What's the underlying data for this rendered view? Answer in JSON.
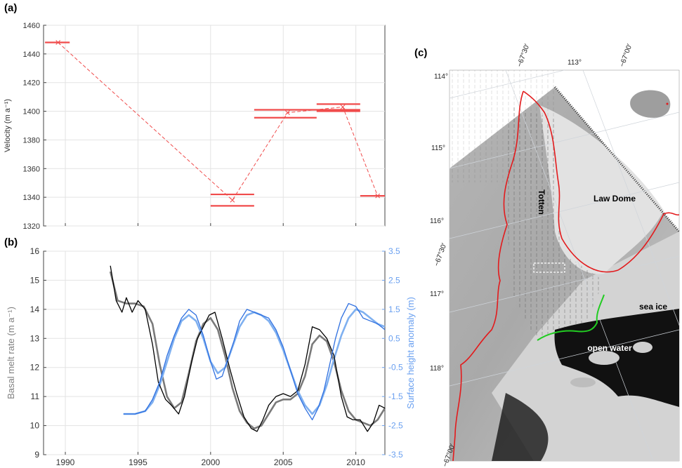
{
  "panels": {
    "a": "(a)",
    "b": "(b)",
    "c": "(c)"
  },
  "chart_data": [
    {
      "type": "line",
      "panel": "(a)",
      "ylabel": "Velocity (m a⁻¹)",
      "xlim": [
        1988.5,
        2012
      ],
      "ylim": [
        1320,
        1460
      ],
      "yticks": [
        1320,
        1340,
        1360,
        1380,
        1400,
        1420,
        1440,
        1460
      ],
      "grid": true,
      "series": [
        {
          "values_x": [
            1989.5,
            2001.5,
            2005.3,
            2009.1,
            2011.5
          ],
          "values_y": [
            1448,
            1338,
            1399,
            1403,
            1341
          ],
          "color": "#f04b4b",
          "style": "dashed"
        }
      ],
      "intervals": [
        {
          "x0": 1988.6,
          "x1": 1990.3,
          "y": 1448
        },
        {
          "x0": 2000.0,
          "x1": 2003.0,
          "y": 1342
        },
        {
          "x0": 2000.0,
          "x1": 2003.0,
          "y": 1334
        },
        {
          "x0": 2003.0,
          "x1": 2010.3,
          "y": 1401
        },
        {
          "x0": 2003.0,
          "x1": 2007.3,
          "y": 1395.5
        },
        {
          "x0": 2007.3,
          "x1": 2010.3,
          "y": 1405
        },
        {
          "x0": 2007.3,
          "x1": 2010.3,
          "y": 1400
        },
        {
          "x0": 2010.3,
          "x1": 2012.0,
          "y": 1341
        }
      ]
    },
    {
      "type": "line",
      "panel": "(b)",
      "xlim": [
        1988.5,
        2012
      ],
      "xticks": [
        1990,
        1995,
        2000,
        2005,
        2010
      ],
      "ylabel_left": "Basal melt rate (m a⁻¹)",
      "ylim_left": [
        9,
        16
      ],
      "yticks_left": [
        9,
        10,
        11,
        12,
        13,
        14,
        15,
        16
      ],
      "ylabel_right": "Surface height anomaly (m)",
      "ylim_right": [
        -3.5,
        3.5
      ],
      "yticks_right": [
        "-3.5",
        "-2.5",
        "-1.5",
        "-0.5",
        "0.5",
        "1.5",
        "2.5",
        "3.5"
      ],
      "grid": true,
      "series": [
        {
          "axis": "left",
          "color": "#000000",
          "width": 1.3,
          "x": [
            1993.1,
            1993.5,
            1993.9,
            1994.2,
            1994.6,
            1995.0,
            1995.5,
            1996.0,
            1996.4,
            1996.9,
            1997.3,
            1997.8,
            1998.2,
            1998.7,
            1999.1,
            1999.5,
            1999.9,
            2000.3,
            2000.8,
            2001.3,
            2001.8,
            2002.3,
            2002.8,
            2003.2,
            2003.6,
            2004.0,
            2004.5,
            2005.0,
            2005.5,
            2006.0,
            2006.5,
            2007.0,
            2007.5,
            2008.0,
            2008.5,
            2009.0,
            2009.4,
            2009.8,
            2010.3,
            2010.8,
            2011.2,
            2011.6,
            2012.0
          ],
          "y": [
            15.5,
            14.3,
            13.9,
            14.4,
            13.9,
            14.3,
            14.0,
            12.8,
            11.5,
            10.9,
            10.7,
            10.4,
            11.0,
            12.2,
            13.0,
            13.4,
            13.8,
            13.9,
            13.0,
            12.0,
            11.1,
            10.3,
            9.9,
            9.8,
            10.2,
            10.7,
            11.0,
            11.1,
            11.0,
            11.2,
            12.1,
            13.4,
            13.3,
            13.0,
            12.4,
            11.0,
            10.3,
            10.2,
            10.2,
            9.8,
            10.1,
            10.7,
            10.6
          ]
        },
        {
          "axis": "left",
          "color": "#7a7a7a",
          "width": 2.6,
          "x": [
            1993.1,
            1993.6,
            1994.2,
            1994.8,
            1995.4,
            1996.0,
            1996.5,
            1997.0,
            1997.5,
            1998.0,
            1998.5,
            1999.0,
            1999.5,
            2000.0,
            2000.5,
            2001.0,
            2001.5,
            2002.0,
            2002.5,
            2003.0,
            2003.5,
            2004.0,
            2004.5,
            2005.0,
            2005.5,
            2006.0,
            2006.5,
            2007.0,
            2007.5,
            2008.0,
            2008.5,
            2009.0,
            2009.5,
            2010.0,
            2010.5,
            2011.0,
            2011.5,
            2012.0
          ],
          "y": [
            15.3,
            14.3,
            14.2,
            14.2,
            14.1,
            13.5,
            12.1,
            11.0,
            10.6,
            10.8,
            11.8,
            12.9,
            13.5,
            13.7,
            13.3,
            12.4,
            11.3,
            10.5,
            10.1,
            9.9,
            10.0,
            10.4,
            10.8,
            10.9,
            10.9,
            11.1,
            11.7,
            12.8,
            13.1,
            12.9,
            12.2,
            11.2,
            10.5,
            10.2,
            10.1,
            10.0,
            10.2,
            10.6
          ]
        },
        {
          "axis": "right",
          "color": "#2e6fe0",
          "width": 1.3,
          "x": [
            1994.0,
            1994.8,
            1995.5,
            1996.0,
            1996.5,
            1997.0,
            1997.5,
            1998.0,
            1998.5,
            1999.0,
            1999.5,
            2000.0,
            2000.4,
            2000.8,
            2001.2,
            2001.6,
            2002.0,
            2002.5,
            2003.0,
            2003.5,
            2004.0,
            2004.5,
            2005.0,
            2005.5,
            2006.0,
            2006.5,
            2007.0,
            2007.4,
            2007.8,
            2008.2,
            2008.6,
            2009.0,
            2009.5,
            2010.0,
            2010.5,
            2011.0,
            2011.5,
            2012.0
          ],
          "y": [
            -2.1,
            -2.1,
            -2.0,
            -1.6,
            -1.0,
            -0.1,
            0.6,
            1.2,
            1.5,
            1.3,
            0.6,
            -0.3,
            -0.9,
            -0.8,
            -0.2,
            0.4,
            1.1,
            1.5,
            1.4,
            1.3,
            1.2,
            0.8,
            0.2,
            -0.6,
            -1.4,
            -1.9,
            -2.3,
            -1.9,
            -1.3,
            -0.4,
            0.5,
            1.2,
            1.7,
            1.6,
            1.2,
            1.1,
            1.0,
            0.8
          ]
        },
        {
          "axis": "right",
          "color": "#7fb0f0",
          "width": 2.6,
          "x": [
            1994.0,
            1994.8,
            1995.5,
            1996.0,
            1996.5,
            1997.0,
            1997.5,
            1998.0,
            1998.5,
            1999.0,
            1999.5,
            2000.0,
            2000.5,
            2001.0,
            2001.5,
            2002.0,
            2002.5,
            2003.0,
            2003.5,
            2004.0,
            2004.5,
            2005.0,
            2005.5,
            2006.0,
            2006.5,
            2007.0,
            2007.5,
            2008.0,
            2008.5,
            2009.0,
            2009.5,
            2010.0,
            2010.5,
            2011.0,
            2011.5,
            2012.0
          ],
          "y": [
            -2.1,
            -2.1,
            -2.0,
            -1.7,
            -1.1,
            -0.3,
            0.5,
            1.1,
            1.3,
            1.1,
            0.5,
            -0.3,
            -0.7,
            -0.5,
            0.2,
            0.9,
            1.3,
            1.4,
            1.3,
            1.1,
            0.7,
            0.1,
            -0.6,
            -1.3,
            -1.8,
            -2.1,
            -1.8,
            -1.1,
            -0.2,
            0.6,
            1.2,
            1.5,
            1.4,
            1.2,
            1.0,
            0.9
          ]
        }
      ]
    }
  ],
  "map": {
    "labels": {
      "totten": "Totten",
      "law_dome": "Law Dome",
      "sea_ice": "sea ice",
      "open_water": "open water"
    },
    "lon_labels": [
      "114°",
      "115°",
      "116°",
      "117°",
      "118°"
    ],
    "top_labels": [
      "−67°30′",
      "113°",
      "−67°00′"
    ],
    "left_lat_labels": [
      "−67°30′",
      "−67°00′"
    ],
    "colors": {
      "grounding_line": "#e31a1c",
      "ice_front": "#22cc22",
      "highlight_box": "#ffffff"
    }
  }
}
